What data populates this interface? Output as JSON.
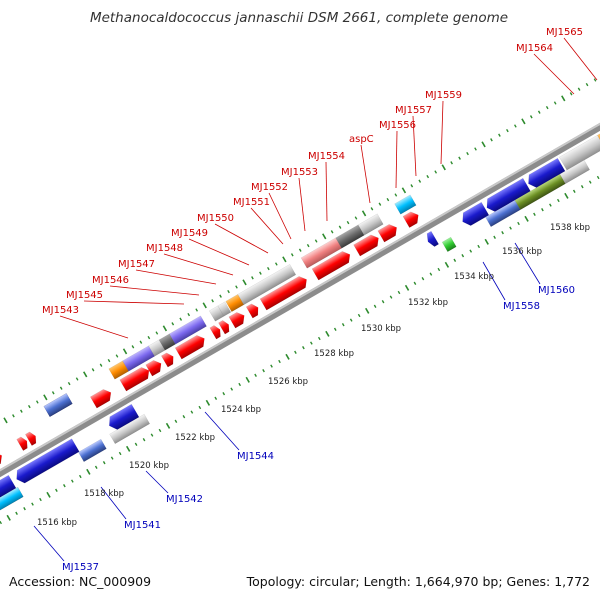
{
  "title": "Methanocaldococcus jannaschii DSM 2661, complete genome",
  "accession": "Accession: NC_000909",
  "summary": "Topology: circular; Length: 1,664,970 bp; Genes: 1,772",
  "colors": {
    "background": "#ffffff",
    "backbone": "#8c8c8c",
    "ruler_tick": "#2e8b2e",
    "forward_label": "#cc0000",
    "reverse_label": "#0000bb",
    "rrna": "#ff0000",
    "pink": "#f08080",
    "blue": "#1a1acc",
    "grey": "#c8c8c8",
    "dark_grey": "#6a6a6a",
    "orange": "#ff8c00",
    "purple": "#7b68ee",
    "cyan": "#00bfff",
    "olive": "#6b8e23",
    "khaki": "#bdb76b",
    "green": "#32cd32"
  },
  "ruler": {
    "unit": "kbp",
    "labels": [
      "1516 kbp",
      "1518 kbp",
      "1520 kbp",
      "1522 kbp",
      "1524 kbp",
      "1526 kbp",
      "1528 kbp",
      "1530 kbp",
      "1532 kbp",
      "1534 kbp",
      "1536 kbp",
      "1538 kbp"
    ]
  },
  "forward_labels": [
    "MJ1543",
    "MJ1545",
    "MJ1546",
    "MJ1547",
    "MJ1548",
    "MJ1549",
    "MJ1550",
    "MJ1551",
    "MJ1552",
    "MJ1553",
    "MJ1554",
    "aspC",
    "MJ1556",
    "MJ1557",
    "MJ1559",
    "MJ1564",
    "MJ1565"
  ],
  "reverse_labels": [
    "MJ1537",
    "MJ1541",
    "MJ1542",
    "MJ1544",
    "MJ1558",
    "MJ1560"
  ]
}
